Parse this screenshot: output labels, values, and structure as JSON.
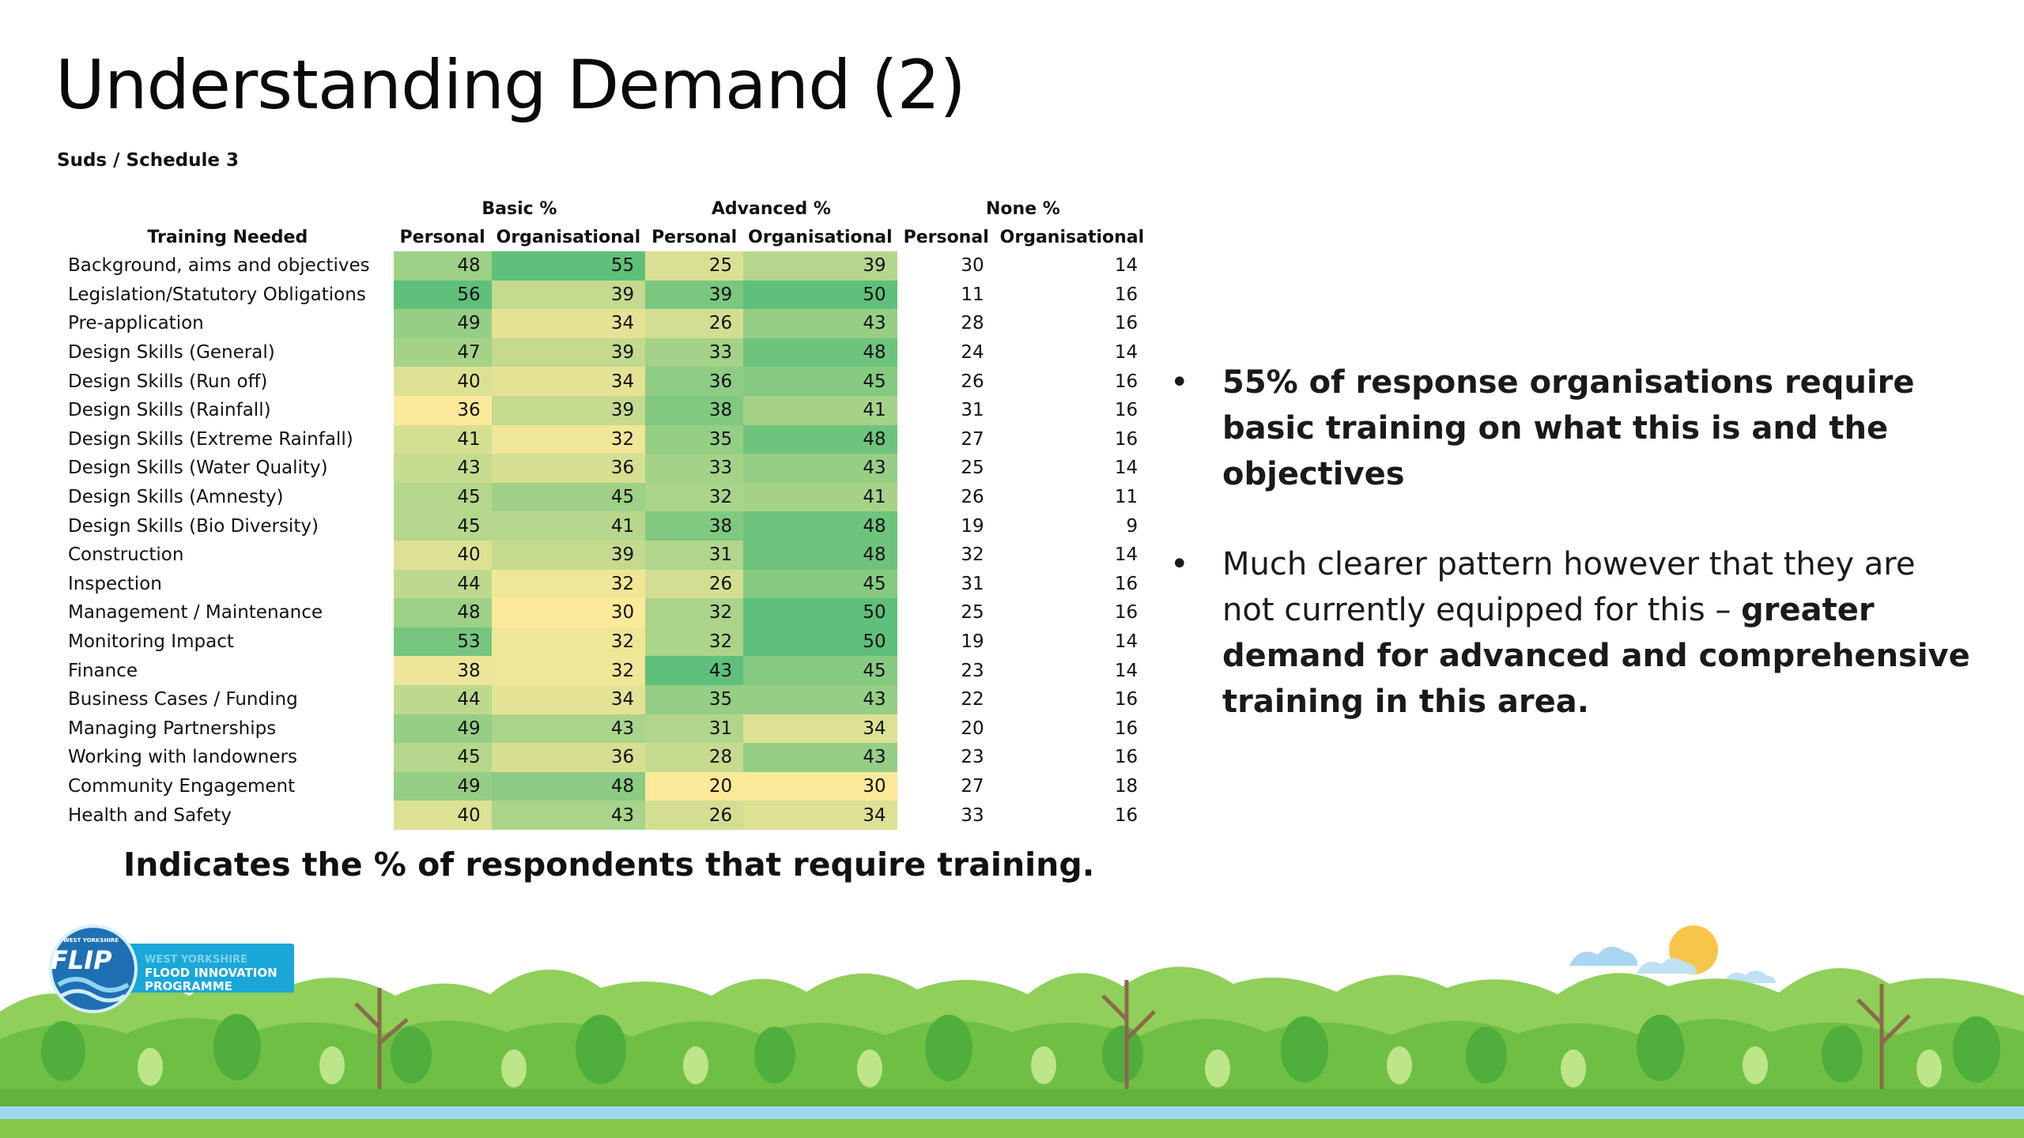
{
  "title": "Understanding Demand (2)",
  "subtitle": "Suds / Schedule 3",
  "table": {
    "group_headers": [
      "Basic %",
      "Advanced %",
      "None %"
    ],
    "column_headers": [
      "Training Needed",
      "Personal",
      "Organisational",
      "Personal",
      "Organisational",
      "Personal",
      "Organisational"
    ],
    "rows": [
      {
        "label": "Background, aims and objectives",
        "values": [
          48,
          55,
          25,
          39,
          30,
          14
        ]
      },
      {
        "label": "Legislation/Statutory Obligations",
        "values": [
          56,
          39,
          39,
          50,
          11,
          16
        ]
      },
      {
        "label": "Pre-application",
        "values": [
          49,
          34,
          26,
          43,
          28,
          16
        ]
      },
      {
        "label": "Design Skills (General)",
        "values": [
          47,
          39,
          33,
          48,
          24,
          14
        ]
      },
      {
        "label": "Design Skills (Run off)",
        "values": [
          40,
          34,
          36,
          45,
          26,
          16
        ]
      },
      {
        "label": "Design Skills (Rainfall)",
        "values": [
          36,
          39,
          38,
          41,
          31,
          16
        ]
      },
      {
        "label": "Design Skills (Extreme Rainfall)",
        "values": [
          41,
          32,
          35,
          48,
          27,
          16
        ]
      },
      {
        "label": "Design Skills (Water Quality)",
        "values": [
          43,
          36,
          33,
          43,
          25,
          14
        ]
      },
      {
        "label": "Design Skills (Amnesty)",
        "values": [
          45,
          45,
          32,
          41,
          26,
          11
        ]
      },
      {
        "label": "Design Skills (Bio Diversity)",
        "values": [
          45,
          41,
          38,
          48,
          19,
          9
        ]
      },
      {
        "label": "Construction",
        "values": [
          40,
          39,
          31,
          48,
          32,
          14
        ]
      },
      {
        "label": "Inspection",
        "values": [
          44,
          32,
          26,
          45,
          31,
          16
        ]
      },
      {
        "label": "Management / Maintenance",
        "values": [
          48,
          30,
          32,
          50,
          25,
          16
        ]
      },
      {
        "label": "Monitoring Impact",
        "values": [
          53,
          32,
          32,
          50,
          19,
          14
        ]
      },
      {
        "label": "Finance",
        "values": [
          38,
          32,
          43,
          45,
          23,
          14
        ]
      },
      {
        "label": "Business Cases / Funding",
        "values": [
          44,
          34,
          35,
          43,
          22,
          16
        ]
      },
      {
        "label": "Managing Partnerships",
        "values": [
          49,
          43,
          31,
          34,
          20,
          16
        ]
      },
      {
        "label": "Working with landowners",
        "values": [
          45,
          36,
          28,
          43,
          23,
          16
        ]
      },
      {
        "label": "Community Engagement",
        "values": [
          49,
          48,
          20,
          30,
          27,
          18
        ]
      },
      {
        "label": "Health and Safety",
        "values": [
          40,
          43,
          26,
          34,
          33,
          16
        ]
      }
    ],
    "heat_low_color": "#fde99a",
    "heat_high_color": "#5ec07a"
  },
  "note": "Indicates the % of respondents that require training.",
  "bullets": [
    {
      "normal": "",
      "bold": "55% of response organisations require basic training on what this is and the objectives"
    },
    {
      "normal": "Much clearer pattern however that they are not currently equipped for this – ",
      "bold": "greater demand for advanced and comprehensive training in this area."
    }
  ],
  "logo": {
    "mark": "FLIP",
    "line1": "WEST YORKSHIRE",
    "line2": "FLOOD INNOVATION",
    "line3": "PROGRAMME",
    "tag": "WEST YORKSHIRE"
  }
}
